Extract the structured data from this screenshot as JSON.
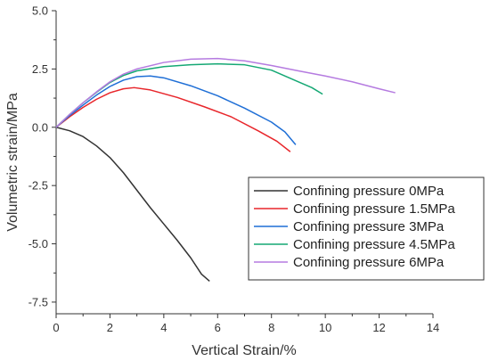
{
  "chart_data": {
    "type": "line",
    "title": "",
    "xlabel": "Vertical Strain/%",
    "ylabel": "Volumetric strain/MPa",
    "xlim": [
      0,
      14
    ],
    "ylim": [
      -8,
      5
    ],
    "xticks": [
      0,
      2,
      4,
      6,
      8,
      10,
      12,
      14
    ],
    "xtick_labels": [
      "0",
      "2",
      "4",
      "6",
      "8",
      "10",
      "12",
      "14"
    ],
    "yticks": [
      -7.5,
      -5.0,
      -2.5,
      0.0,
      2.5,
      5.0
    ],
    "ytick_labels": [
      "-7.5",
      "-5.0",
      "-2.5",
      "0.0",
      "2.5",
      "5.0"
    ],
    "grid": false,
    "legend_position": "lower-right",
    "series": [
      {
        "name": "Confining pressure 0MPa",
        "color": "#333333",
        "points": [
          [
            0,
            0
          ],
          [
            0.5,
            -0.15
          ],
          [
            1,
            -0.4
          ],
          [
            1.5,
            -0.8
          ],
          [
            2,
            -1.3
          ],
          [
            2.5,
            -1.95
          ],
          [
            3,
            -2.7
          ],
          [
            3.5,
            -3.45
          ],
          [
            4,
            -4.15
          ],
          [
            4.5,
            -4.85
          ],
          [
            5,
            -5.6
          ],
          [
            5.4,
            -6.3
          ],
          [
            5.7,
            -6.6
          ]
        ]
      },
      {
        "name": "Confining pressure 1.5MPa",
        "color": "#e8262b",
        "points": [
          [
            0,
            0
          ],
          [
            0.5,
            0.45
          ],
          [
            1,
            0.85
          ],
          [
            1.5,
            1.2
          ],
          [
            2,
            1.48
          ],
          [
            2.5,
            1.65
          ],
          [
            2.9,
            1.7
          ],
          [
            3.5,
            1.6
          ],
          [
            4.5,
            1.28
          ],
          [
            5.5,
            0.88
          ],
          [
            6.5,
            0.45
          ],
          [
            7.5,
            -0.15
          ],
          [
            8.2,
            -0.6
          ],
          [
            8.7,
            -1.05
          ]
        ]
      },
      {
        "name": "Confining pressure 3MPa",
        "color": "#1f6fd6",
        "points": [
          [
            0,
            0
          ],
          [
            0.5,
            0.5
          ],
          [
            1,
            0.95
          ],
          [
            1.5,
            1.38
          ],
          [
            2,
            1.75
          ],
          [
            2.5,
            2.02
          ],
          [
            3,
            2.17
          ],
          [
            3.5,
            2.2
          ],
          [
            4,
            2.12
          ],
          [
            5,
            1.78
          ],
          [
            6,
            1.35
          ],
          [
            7,
            0.82
          ],
          [
            8,
            0.22
          ],
          [
            8.5,
            -0.2
          ],
          [
            8.9,
            -0.75
          ]
        ]
      },
      {
        "name": "Confining pressure 4.5MPa",
        "color": "#15a874",
        "points": [
          [
            0,
            0
          ],
          [
            0.5,
            0.55
          ],
          [
            1,
            1.05
          ],
          [
            1.5,
            1.5
          ],
          [
            2,
            1.92
          ],
          [
            2.5,
            2.22
          ],
          [
            3,
            2.42
          ],
          [
            4,
            2.6
          ],
          [
            5,
            2.68
          ],
          [
            6,
            2.72
          ],
          [
            7,
            2.68
          ],
          [
            8,
            2.45
          ],
          [
            9,
            1.95
          ],
          [
            9.5,
            1.7
          ],
          [
            9.9,
            1.42
          ]
        ]
      },
      {
        "name": "Confining pressure 6MPa",
        "color": "#b57be0",
        "points": [
          [
            0,
            0
          ],
          [
            0.5,
            0.55
          ],
          [
            1,
            1.05
          ],
          [
            1.5,
            1.52
          ],
          [
            2,
            1.95
          ],
          [
            2.5,
            2.28
          ],
          [
            3,
            2.5
          ],
          [
            4,
            2.78
          ],
          [
            5,
            2.92
          ],
          [
            6,
            2.95
          ],
          [
            7,
            2.85
          ],
          [
            8,
            2.65
          ],
          [
            9,
            2.42
          ],
          [
            10,
            2.2
          ],
          [
            11,
            1.95
          ],
          [
            12,
            1.65
          ],
          [
            12.6,
            1.48
          ]
        ]
      }
    ]
  }
}
